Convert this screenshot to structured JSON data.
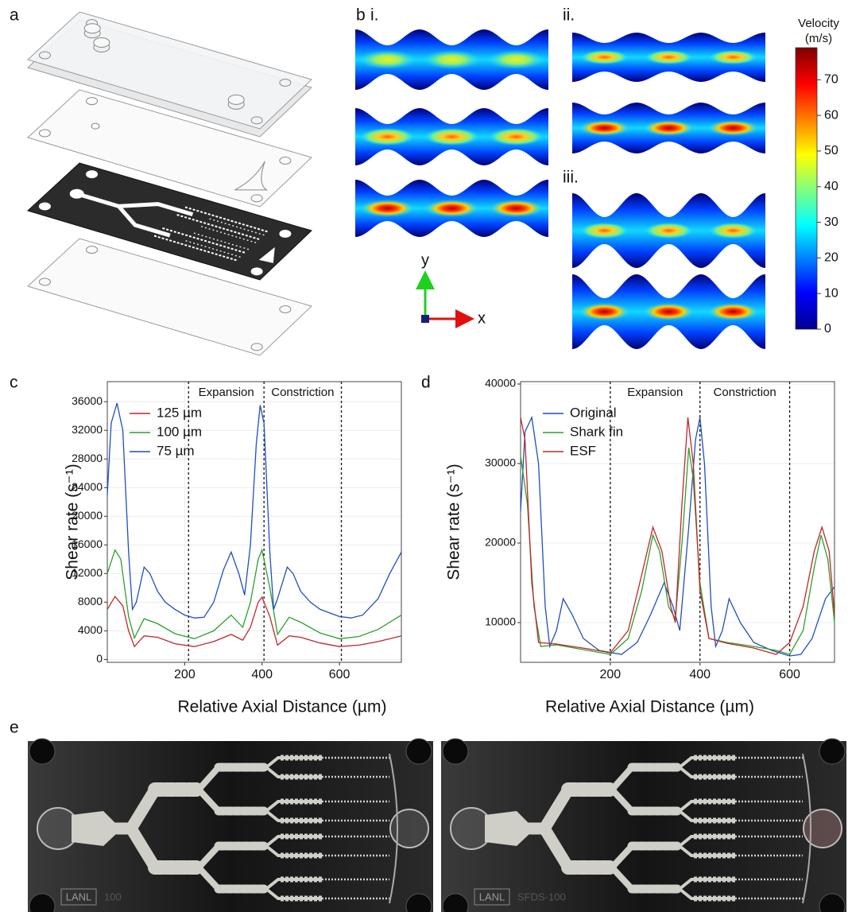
{
  "panels": {
    "a": "a",
    "b": "b",
    "b_i": "i.",
    "b_ii": "ii.",
    "b_iii": "iii.",
    "c": "c",
    "d": "d",
    "e": "e"
  },
  "axes_indicator": {
    "y": "y",
    "x": "x"
  },
  "colorbar": {
    "title": [
      "Velocity",
      "(m/s)"
    ],
    "lim": [
      0,
      79
    ],
    "ticks": [
      0,
      10,
      20,
      30,
      40,
      50,
      60,
      70
    ]
  },
  "photos": [
    {
      "labels": [
        "LANL",
        "100"
      ]
    },
    {
      "labels": [
        "LANL",
        "SFDS-100"
      ]
    }
  ],
  "chart_data": [
    {
      "type": "line",
      "ylabel": "Shear rate (s⁻¹)",
      "xlabel": "Relative Axial Distance (µm)",
      "xlim": [
        0,
        760
      ],
      "ylim": [
        -400,
        38800
      ],
      "xticks": [
        200,
        400,
        600
      ],
      "yticks": [
        0,
        4000,
        8000,
        12000,
        16000,
        20000,
        24000,
        28000,
        32000,
        36000
      ],
      "grid": true,
      "legend": "upper left",
      "vlines": [
        210,
        405,
        605
      ],
      "annotations": [
        "Expansion",
        "Constriction"
      ],
      "series": [
        {
          "name": "125 µm",
          "color": "#c0262b",
          "x": [
            0,
            20,
            40,
            55,
            70,
            95,
            130,
            175,
            225,
            275,
            320,
            350,
            370,
            390,
            400,
            420,
            440,
            470,
            500,
            550,
            600,
            650,
            700,
            760
          ],
          "values": [
            7000,
            8800,
            7500,
            4000,
            1800,
            3300,
            3100,
            2200,
            1800,
            2500,
            3500,
            2700,
            4500,
            8000,
            8700,
            6000,
            2000,
            3300,
            3100,
            2300,
            1800,
            2000,
            2500,
            3300
          ]
        },
        {
          "name": "100 µm",
          "color": "#2ca02c",
          "x": [
            0,
            20,
            35,
            55,
            70,
            95,
            130,
            175,
            225,
            275,
            320,
            350,
            370,
            390,
            400,
            420,
            440,
            470,
            500,
            550,
            600,
            650,
            700,
            760
          ],
          "values": [
            12000,
            15300,
            14000,
            6000,
            3000,
            5700,
            5000,
            3600,
            2900,
            4000,
            6200,
            4500,
            8000,
            14000,
            15300,
            10000,
            3500,
            5900,
            5200,
            3700,
            2900,
            3200,
            4200,
            6200
          ]
        },
        {
          "name": "75 µm",
          "color": "#1f4fbf",
          "x": [
            0,
            10,
            25,
            40,
            55,
            65,
            75,
            95,
            110,
            130,
            150,
            175,
            200,
            225,
            250,
            275,
            300,
            320,
            340,
            355,
            370,
            385,
            395,
            405,
            420,
            430,
            440,
            465,
            480,
            500,
            525,
            550,
            575,
            600,
            630,
            660,
            700,
            730,
            760
          ],
          "values": [
            23000,
            33000,
            35800,
            32000,
            15000,
            7000,
            8000,
            12900,
            12000,
            9500,
            8000,
            7000,
            6200,
            5800,
            5900,
            8000,
            12500,
            15000,
            12000,
            9000,
            16000,
            30000,
            35500,
            33000,
            15000,
            7000,
            8500,
            12900,
            12000,
            9500,
            8000,
            7000,
            6500,
            6000,
            5800,
            6200,
            8500,
            12000,
            15000
          ]
        }
      ]
    },
    {
      "type": "line",
      "ylabel": "Shear rate (s⁻¹)",
      "xlabel": "Relative Axial Distance (µm)",
      "xlim": [
        0,
        700
      ],
      "ylim": [
        5000,
        40300
      ],
      "xticks": [
        200,
        400,
        600
      ],
      "yticks": [
        10000,
        20000,
        30000,
        40000
      ],
      "grid": true,
      "legend": "upper left",
      "vlines": [
        200,
        400,
        600
      ],
      "annotations": [
        "Expansion",
        "Constriction"
      ],
      "series": [
        {
          "name": "Original",
          "color": "#1f4fbf",
          "x": [
            0,
            10,
            25,
            40,
            55,
            65,
            80,
            95,
            115,
            140,
            175,
            225,
            260,
            290,
            320,
            340,
            355,
            375,
            390,
            400,
            410,
            425,
            435,
            450,
            465,
            490,
            520,
            560,
            600,
            625,
            650,
            680,
            700
          ],
          "values": [
            24000,
            34000,
            35800,
            30000,
            12000,
            7000,
            9000,
            13000,
            11000,
            8000,
            6500,
            6000,
            7500,
            11000,
            15000,
            12000,
            9000,
            22000,
            33000,
            35800,
            30000,
            12000,
            7000,
            9000,
            13000,
            10000,
            7500,
            6500,
            5800,
            6000,
            8000,
            13000,
            14500
          ]
        },
        {
          "name": "Shark fin",
          "color": "#2ca02c",
          "x": [
            0,
            15,
            30,
            45,
            80,
            150,
            200,
            240,
            270,
            295,
            310,
            330,
            345,
            360,
            375,
            385,
            400,
            420,
            460,
            520,
            570,
            600,
            630,
            655,
            670,
            685,
            700
          ],
          "values": [
            31000,
            25000,
            12000,
            7000,
            7200,
            6500,
            6000,
            8000,
            14000,
            21000,
            19000,
            12000,
            10500,
            20000,
            32000,
            28000,
            15000,
            8000,
            7500,
            7000,
            6500,
            6000,
            9000,
            17000,
            21000,
            18000,
            10000
          ]
        },
        {
          "name": "ESF",
          "color": "#c0262b",
          "x": [
            0,
            10,
            25,
            40,
            80,
            150,
            200,
            240,
            270,
            295,
            315,
            335,
            345,
            360,
            373,
            385,
            400,
            420,
            460,
            520,
            570,
            600,
            630,
            655,
            672,
            688,
            700
          ],
          "values": [
            35800,
            33000,
            15000,
            7500,
            7300,
            6700,
            6200,
            9000,
            16000,
            22000,
            19000,
            12000,
            10000,
            25000,
            35800,
            30000,
            14000,
            8000,
            7400,
            6800,
            6000,
            7500,
            12000,
            19000,
            22000,
            19000,
            11000
          ]
        }
      ]
    }
  ]
}
